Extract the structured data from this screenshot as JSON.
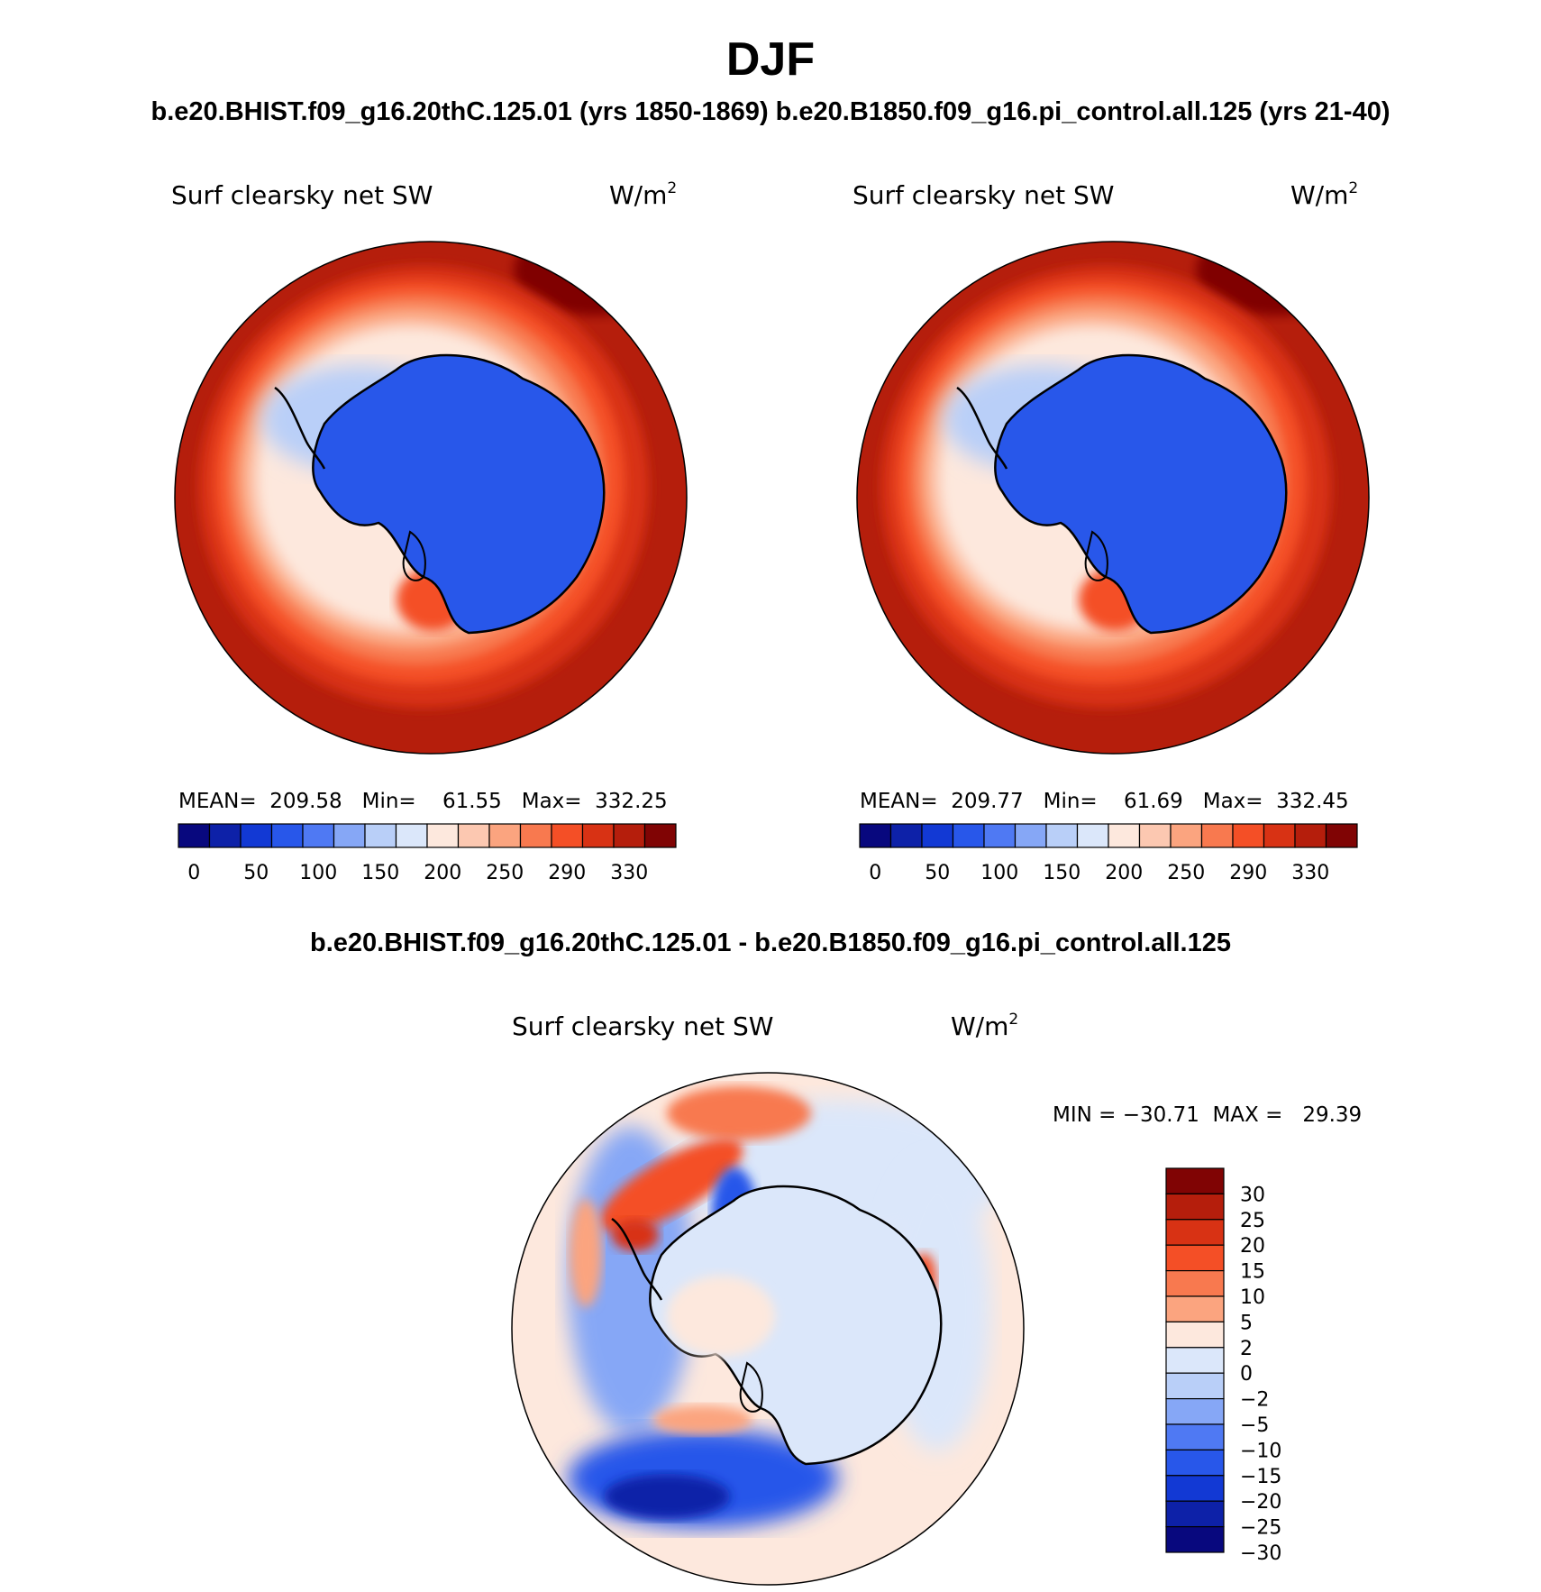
{
  "figure": {
    "title": "DJF",
    "subtitle": "b.e20.BHIST.f09_g16.20thC.125.01 (yrs 1850-1869)  b.e20.B1850.f09_g16.pi_control.all.125 (yrs 21-40)",
    "diff_title": "b.e20.BHIST.f09_g16.20thC.125.01 - b.e20.B1850.f09_g16.pi_control.all.125"
  },
  "panels": [
    {
      "variable": "Surf clearsky net SW",
      "units": "W/m",
      "units_sup": "2",
      "stats": "MEAN=  209.58   Min=    61.55   Max=  332.25"
    },
    {
      "variable": "Surf clearsky net SW",
      "units": "W/m",
      "units_sup": "2",
      "stats": "MEAN=  209.77   Min=    61.69   Max=  332.45"
    },
    {
      "variable": "Surf clearsky net SW",
      "units": "W/m",
      "units_sup": "2",
      "stats": "MIN = −30.71  MAX =   29.39"
    }
  ],
  "colorbars": {
    "mean_colors": [
      "#08087e",
      "#0d21a8",
      "#1239d4",
      "#2857ea",
      "#4f79f3",
      "#86a7f6",
      "#b9cff8",
      "#dbe7fa",
      "#fde8dd",
      "#fcc8b1",
      "#fba47f",
      "#f8794f",
      "#f44f26",
      "#d83214",
      "#b51e0c",
      "#800404"
    ],
    "mean_labels": [
      "0",
      "50",
      "100",
      "150",
      "200",
      "250",
      "290",
      "330"
    ],
    "diff_colors": [
      "#800404",
      "#b51e0c",
      "#d83214",
      "#f44f26",
      "#f8794f",
      "#fba47f",
      "#fde8dd",
      "#dbe7fa",
      "#b9cff8",
      "#86a7f6",
      "#4f79f3",
      "#2857ea",
      "#1239d4",
      "#0d21a8",
      "#08087e"
    ],
    "diff_labels": [
      "30",
      "25",
      "20",
      "15",
      "10",
      "5",
      "2",
      "0",
      "−2",
      "−5",
      "−10",
      "−15",
      "−20",
      "−25",
      "−30"
    ]
  }
}
